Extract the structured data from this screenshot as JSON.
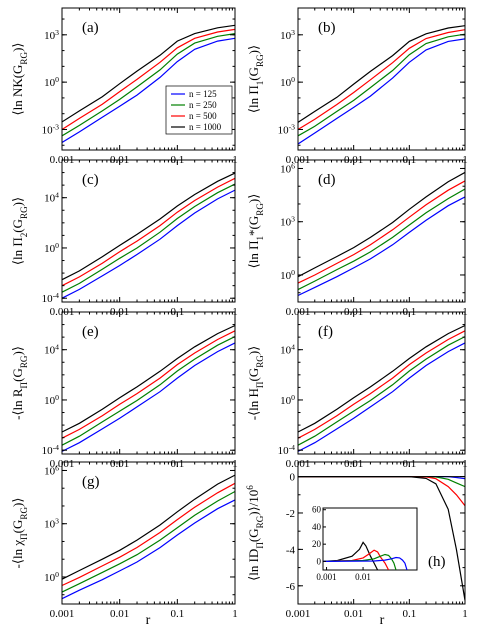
{
  "figure": {
    "xlabel": "r",
    "legend": [
      {
        "label": "n = 125",
        "color": "#0000ff"
      },
      {
        "label": "n = 250",
        "color": "#008000"
      },
      {
        "label": "n = 500",
        "color": "#ff0000"
      },
      {
        "label": "n = 1000",
        "color": "#000000"
      }
    ]
  },
  "chart_data": [
    {
      "id": "a",
      "type": "line",
      "panel_label": "(a)",
      "ylabel": "⟨ln NK(G_RG)⟩",
      "xscale": "log",
      "yscale": "log",
      "xlim": [
        0.001,
        1
      ],
      "ylim": [
        5e-05,
        50000
      ],
      "xticks": [
        0.001,
        0.01,
        0.1,
        1
      ],
      "xticklabels": [
        "0.001",
        "0.01",
        "0.1",
        "1"
      ],
      "yticks": [
        0.001,
        1,
        1000
      ],
      "yticklabels": [
        "10^-3",
        "10^0",
        "10^3"
      ],
      "x": [
        0.001,
        0.002,
        0.005,
        0.01,
        0.02,
        0.05,
        0.1,
        0.2,
        0.5,
        1
      ],
      "series": [
        {
          "name": "n = 125",
          "values": [
            0.00015,
            0.0007,
            0.006,
            0.03,
            0.15,
            2,
            20,
            120,
            400,
            600
          ]
        },
        {
          "name": "n = 250",
          "values": [
            0.0004,
            0.0018,
            0.015,
            0.08,
            0.5,
            6,
            60,
            300,
            800,
            1200
          ]
        },
        {
          "name": "n = 500",
          "values": [
            0.001,
            0.005,
            0.04,
            0.25,
            1.5,
            18,
            150,
            600,
            1500,
            2200
          ]
        },
        {
          "name": "n = 1000",
          "values": [
            0.003,
            0.015,
            0.12,
            0.8,
            5,
            50,
            400,
            1200,
            2800,
            4000
          ]
        }
      ]
    },
    {
      "id": "b",
      "type": "line",
      "panel_label": "(b)",
      "ylabel": "⟨ln Π_1(G_RG)⟩",
      "xscale": "log",
      "yscale": "log",
      "xlim": [
        0.001,
        1
      ],
      "ylim": [
        5e-05,
        50000
      ],
      "xticks": [
        0.001,
        0.01,
        0.1,
        1
      ],
      "xticklabels": [
        "0.001",
        "0.01",
        "0.1",
        "1"
      ],
      "yticks": [
        0.001,
        1,
        1000
      ],
      "yticklabels": [
        "10^-3",
        "10^0",
        "10^3"
      ],
      "x": [
        0.001,
        0.002,
        0.005,
        0.01,
        0.02,
        0.05,
        0.1,
        0.2,
        0.5,
        1
      ],
      "series": [
        {
          "name": "n = 125",
          "values": [
            0.00012,
            0.0006,
            0.005,
            0.025,
            0.13,
            1.8,
            18,
            110,
            380,
            550
          ]
        },
        {
          "name": "n = 250",
          "values": [
            0.0004,
            0.0016,
            0.014,
            0.07,
            0.45,
            5.5,
            55,
            280,
            750,
            1100
          ]
        },
        {
          "name": "n = 500",
          "values": [
            0.001,
            0.0045,
            0.038,
            0.22,
            1.4,
            17,
            140,
            580,
            1400,
            2100
          ]
        },
        {
          "name": "n = 1000",
          "values": [
            0.0028,
            0.014,
            0.11,
            0.75,
            4.8,
            48,
            380,
            1150,
            2700,
            3800
          ]
        }
      ]
    },
    {
      "id": "c",
      "type": "line",
      "panel_label": "(c)",
      "ylabel": "⟨ln Π_2(G_RG)⟩",
      "xscale": "log",
      "yscale": "log",
      "xlim": [
        0.001,
        1
      ],
      "ylim": [
        5e-05,
        10000000
      ],
      "xticks": [
        0.001,
        0.01,
        0.1,
        1
      ],
      "xticklabels": [
        "0.001",
        "0.01",
        "0.1",
        "1"
      ],
      "yticks": [
        0.0001,
        1,
        10000
      ],
      "yticklabels": [
        "10^-4",
        "10^0",
        "10^4"
      ],
      "x": [
        0.001,
        0.002,
        0.005,
        0.01,
        0.02,
        0.05,
        0.1,
        0.2,
        0.5,
        1
      ],
      "series": [
        {
          "name": "n = 125",
          "values": [
            0.0001,
            0.0005,
            0.006,
            0.04,
            0.3,
            5,
            60,
            600,
            8000,
            40000
          ]
        },
        {
          "name": "n = 250",
          "values": [
            0.0003,
            0.0015,
            0.02,
            0.15,
            1,
            18,
            220,
            2000,
            25000,
            120000
          ]
        },
        {
          "name": "n = 500",
          "values": [
            0.001,
            0.005,
            0.06,
            0.5,
            3.5,
            60,
            700,
            6000,
            70000,
            350000
          ]
        },
        {
          "name": "n = 1000",
          "values": [
            0.003,
            0.015,
            0.2,
            1.6,
            12,
            200,
            2200,
            18000,
            200000,
            900000
          ]
        }
      ]
    },
    {
      "id": "d",
      "type": "line",
      "panel_label": "(d)",
      "ylabel": "⟨ln Π_1*(G_RG)⟩",
      "xscale": "log",
      "yscale": "log",
      "xlim": [
        0.001,
        1
      ],
      "ylim": [
        0.03,
        3000000
      ],
      "xticks": [
        0.001,
        0.01,
        0.1,
        1
      ],
      "xticklabels": [
        "0.001",
        "0.01",
        "0.1",
        "1"
      ],
      "yticks": [
        1,
        1000,
        1000000
      ],
      "yticklabels": [
        "10^0",
        "10^3",
        "10^6"
      ],
      "x": [
        0.001,
        0.002,
        0.005,
        0.01,
        0.02,
        0.05,
        0.1,
        0.2,
        0.5,
        1
      ],
      "series": [
        {
          "name": "n = 125",
          "values": [
            0.07,
            0.2,
            0.8,
            2.5,
            8,
            50,
            250,
            1200,
            8000,
            25000
          ]
        },
        {
          "name": "n = 250",
          "values": [
            0.15,
            0.45,
            2,
            6,
            20,
            130,
            650,
            3200,
            20000,
            70000
          ]
        },
        {
          "name": "n = 500",
          "values": [
            0.35,
            1,
            4.5,
            14,
            50,
            350,
            1800,
            9000,
            60000,
            200000
          ]
        },
        {
          "name": "n = 1000",
          "values": [
            0.8,
            2.5,
            11,
            35,
            130,
            900,
            5000,
            25000,
            180000,
            600000
          ]
        }
      ]
    },
    {
      "id": "e",
      "type": "line",
      "panel_label": "(e)",
      "ylabel": "-⟨ln R_Π(G_RG)⟩",
      "xscale": "log",
      "yscale": "log",
      "xlim": [
        0.001,
        1
      ],
      "ylim": [
        5e-05,
        10000000
      ],
      "xticks": [
        0.001,
        0.01,
        0.1,
        1
      ],
      "xticklabels": [
        "0.001",
        "0.01",
        "0.1",
        "1"
      ],
      "yticks": [
        0.0001,
        1,
        10000
      ],
      "yticklabels": [
        "10^-4",
        "10^0",
        "10^4"
      ],
      "x": [
        0.001,
        0.002,
        0.005,
        0.01,
        0.02,
        0.05,
        0.1,
        0.2,
        0.5,
        1
      ],
      "series": [
        {
          "name": "n = 125",
          "values": [
            8e-05,
            0.0004,
            0.005,
            0.035,
            0.28,
            4.5,
            55,
            550,
            7000,
            35000
          ]
        },
        {
          "name": "n = 250",
          "values": [
            0.00025,
            0.0013,
            0.018,
            0.13,
            0.9,
            16,
            200,
            1800,
            23000,
            110000
          ]
        },
        {
          "name": "n = 500",
          "values": [
            0.0009,
            0.0045,
            0.055,
            0.45,
            3.2,
            55,
            650,
            5500,
            65000,
            320000
          ]
        },
        {
          "name": "n = 1000",
          "values": [
            0.0028,
            0.014,
            0.18,
            1.5,
            11,
            190,
            2000,
            17000,
            190000,
            850000
          ]
        }
      ]
    },
    {
      "id": "f",
      "type": "line",
      "panel_label": "(f)",
      "ylabel": "-⟨ln H_Π(G_RG)⟩",
      "xscale": "log",
      "yscale": "log",
      "xlim": [
        0.001,
        1
      ],
      "ylim": [
        5e-05,
        10000000
      ],
      "xticks": [
        0.001,
        0.01,
        0.1,
        1
      ],
      "xticklabels": [
        "0.001",
        "0.01",
        "0.1",
        "1"
      ],
      "yticks": [
        0.0001,
        1,
        10000
      ],
      "yticklabels": [
        "10^-4",
        "10^0",
        "10^4"
      ],
      "x": [
        0.001,
        0.002,
        0.005,
        0.01,
        0.02,
        0.05,
        0.1,
        0.2,
        0.5,
        1
      ],
      "series": [
        {
          "name": "n = 125",
          "values": [
            8e-05,
            0.0004,
            0.005,
            0.035,
            0.28,
            4.5,
            55,
            550,
            7000,
            35000
          ]
        },
        {
          "name": "n = 250",
          "values": [
            0.00025,
            0.0013,
            0.018,
            0.13,
            0.9,
            16,
            200,
            1800,
            23000,
            110000
          ]
        },
        {
          "name": "n = 500",
          "values": [
            0.0009,
            0.0045,
            0.055,
            0.45,
            3.2,
            55,
            650,
            5500,
            65000,
            320000
          ]
        },
        {
          "name": "n = 1000",
          "values": [
            0.0028,
            0.014,
            0.18,
            1.5,
            11,
            190,
            2000,
            17000,
            190000,
            850000
          ]
        }
      ]
    },
    {
      "id": "g",
      "type": "line",
      "panel_label": "(g)",
      "ylabel": "-⟨ln χ_Π(G_RG)⟩",
      "xscale": "log",
      "yscale": "log",
      "xlim": [
        0.001,
        1
      ],
      "ylim": [
        0.03,
        3000000
      ],
      "xticks": [
        0.001,
        0.01,
        0.1,
        1
      ],
      "xticklabels": [
        "0.001",
        "0.01",
        "0.1",
        "1"
      ],
      "yticks": [
        1,
        1000,
        1000000
      ],
      "yticklabels": [
        "10^0",
        "10^3",
        "10^6"
      ],
      "x": [
        0.001,
        0.002,
        0.005,
        0.01,
        0.02,
        0.05,
        0.1,
        0.2,
        0.5,
        1
      ],
      "series": [
        {
          "name": "n = 125",
          "values": [
            0.06,
            0.18,
            0.7,
            2.2,
            7,
            45,
            230,
            1100,
            7000,
            22000
          ]
        },
        {
          "name": "n = 250",
          "values": [
            0.14,
            0.42,
            1.8,
            5.5,
            18,
            120,
            600,
            3000,
            19000,
            65000
          ]
        },
        {
          "name": "n = 500",
          "values": [
            0.33,
            0.95,
            4.2,
            13,
            46,
            320,
            1700,
            8500,
            55000,
            190000
          ]
        },
        {
          "name": "n = 1000",
          "values": [
            0.75,
            2.3,
            10,
            32,
            120,
            850,
            4700,
            24000,
            170000,
            550000
          ]
        }
      ]
    },
    {
      "id": "h",
      "type": "line",
      "panel_label": "(h)",
      "ylabel": "⟨ln ID_Π(G_RG)⟩/10^6",
      "xscale": "log",
      "yscale": "linear",
      "xlim": [
        0.001,
        1
      ],
      "ylim": [
        -7,
        0.8
      ],
      "xticks": [
        0.001,
        0.01,
        0.1,
        1
      ],
      "xticklabels": [
        "0.001",
        "0.01",
        "0.1",
        "1"
      ],
      "yticks": [
        0,
        -2,
        -4,
        -6
      ],
      "yticklabels": [
        "0",
        "-2",
        "-4",
        "-6"
      ],
      "x": [
        0.001,
        0.01,
        0.05,
        0.1,
        0.2,
        0.3,
        0.5,
        0.7,
        1
      ],
      "series": [
        {
          "name": "n = 125",
          "values": [
            0,
            0,
            0,
            0,
            0,
            0,
            0,
            -0.05,
            -0.12
          ]
        },
        {
          "name": "n = 250",
          "values": [
            0,
            0,
            0,
            0,
            0,
            -0.02,
            -0.15,
            -0.35,
            -0.55
          ]
        },
        {
          "name": "n = 500",
          "values": [
            0,
            0,
            0,
            0,
            -0.02,
            -0.12,
            -0.55,
            -1.0,
            -1.6
          ]
        },
        {
          "name": "n = 1000",
          "values": [
            0,
            0,
            0,
            0,
            -0.1,
            -0.4,
            -1.8,
            -4.0,
            -6.8
          ]
        }
      ],
      "inset": {
        "xscale": "log",
        "yscale": "linear",
        "xlim": [
          0.0008,
          0.3
        ],
        "ylim": [
          -10,
          62
        ],
        "xticks": [
          0.001,
          0.01
        ],
        "xticklabels": [
          "0.001",
          "0.01"
        ],
        "yticks": [
          0,
          20,
          40,
          60
        ],
        "yticklabels": [
          "0",
          "20",
          "40",
          "60"
        ],
        "series": [
          {
            "name": "n = 1000",
            "x": [
              0.0008,
              0.002,
              0.005,
              0.008,
              0.01,
              0.012,
              0.016,
              0.02,
              0.025
            ],
            "values": [
              0,
              1,
              6,
              14,
              22,
              18,
              6,
              -2,
              -10
            ]
          },
          {
            "name": "n = 500",
            "x": [
              0.0008,
              0.005,
              0.01,
              0.015,
              0.02,
              0.025,
              0.03,
              0.04,
              0.05
            ],
            "values": [
              0,
              1,
              4,
              9,
              13,
              11,
              5,
              -2,
              -10
            ]
          },
          {
            "name": "n = 250",
            "x": [
              0.0008,
              0.01,
              0.02,
              0.03,
              0.04,
              0.05,
              0.06,
              0.07,
              0.08
            ],
            "values": [
              0,
              1,
              3,
              6,
              8,
              7,
              3,
              -2,
              -10
            ]
          },
          {
            "name": "n = 125",
            "x": [
              0.0008,
              0.02,
              0.04,
              0.06,
              0.08,
              0.1,
              0.12,
              0.14,
              0.16
            ],
            "values": [
              0,
              0.5,
              1.5,
              3,
              4.5,
              4,
              1.5,
              -2,
              -10
            ]
          }
        ]
      }
    }
  ]
}
